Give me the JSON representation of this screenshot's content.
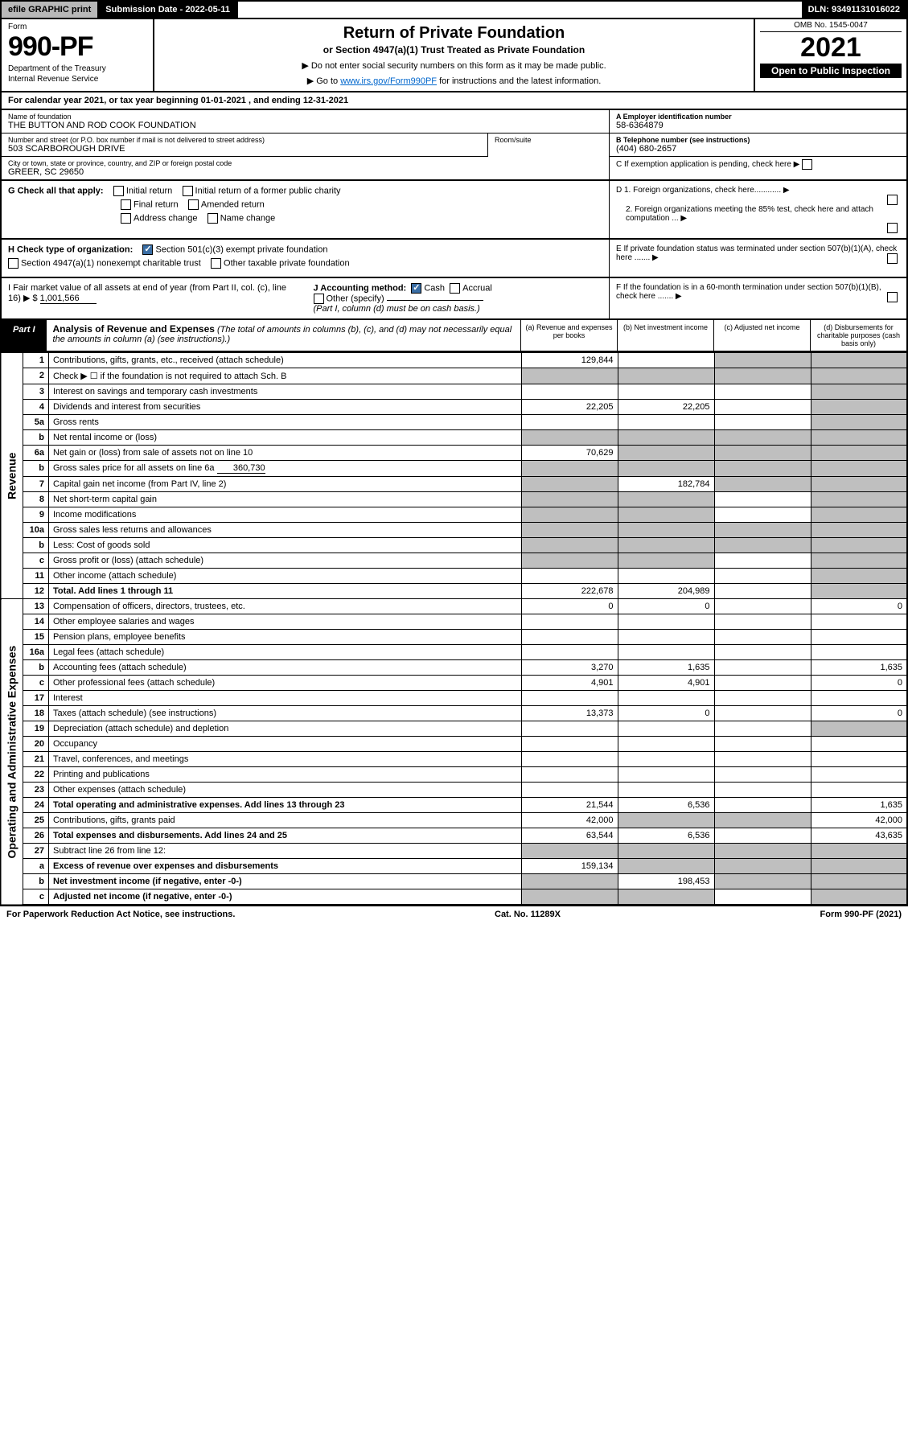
{
  "topbar": {
    "efile": "efile GRAPHIC print",
    "subdate_label": "Submission Date - 2022-05-11",
    "dln": "DLN: 93491131016022"
  },
  "header": {
    "form_word": "Form",
    "form_no": "990-PF",
    "dept": "Department of the Treasury",
    "irs": "Internal Revenue Service",
    "title": "Return of Private Foundation",
    "subtitle": "or Section 4947(a)(1) Trust Treated as Private Foundation",
    "note1": "▶ Do not enter social security numbers on this form as it may be made public.",
    "note2_pre": "▶ Go to ",
    "note2_link": "www.irs.gov/Form990PF",
    "note2_post": " for instructions and the latest information.",
    "omb": "OMB No. 1545-0047",
    "year": "2021",
    "inspect": "Open to Public Inspection"
  },
  "calendar": {
    "text_pre": "For calendar year 2021, or tax year beginning ",
    "begin": "01-01-2021",
    "text_mid": " , and ending ",
    "end": "12-31-2021"
  },
  "info": {
    "name_label": "Name of foundation",
    "name": "THE BUTTON AND ROD COOK FOUNDATION",
    "addr_label": "Number and street (or P.O. box number if mail is not delivered to street address)",
    "addr": "503 SCARBOROUGH DRIVE",
    "room_label": "Room/suite",
    "city_label": "City or town, state or province, country, and ZIP or foreign postal code",
    "city": "GREER, SC  29650",
    "ein_label": "A Employer identification number",
    "ein": "58-6364879",
    "tel_label": "B Telephone number (see instructions)",
    "tel": "(404) 680-2657",
    "c_label": "C If exemption application is pending, check here ▶"
  },
  "checks": {
    "g_label": "G Check all that apply:",
    "g_opts": [
      "Initial return",
      "Initial return of a former public charity",
      "Final return",
      "Amended return",
      "Address change",
      "Name change"
    ],
    "h_label": "H Check type of organization:",
    "h1": "Section 501(c)(3) exempt private foundation",
    "h2": "Section 4947(a)(1) nonexempt charitable trust",
    "h3": "Other taxable private foundation",
    "i_label": "I Fair market value of all assets at end of year (from Part II, col. (c), line 16) ▶ $",
    "i_val": "1,001,566",
    "j_label": "J Accounting method:",
    "j_cash": "Cash",
    "j_accrual": "Accrual",
    "j_other": "Other (specify)",
    "j_note": "(Part I, column (d) must be on cash basis.)",
    "d1": "D 1. Foreign organizations, check here............ ▶",
    "d2": "2. Foreign organizations meeting the 85% test, check here and attach computation ... ▶",
    "e": "E If private foundation status was terminated under section 507(b)(1)(A), check here ....... ▶",
    "f": "F If the foundation is in a 60-month termination under section 507(b)(1)(B), check here ....... ▶"
  },
  "part1": {
    "tab": "Part I",
    "title": "Analysis of Revenue and Expenses",
    "title_note": " (The total of amounts in columns (b), (c), and (d) may not necessarily equal the amounts in column (a) (see instructions).)",
    "col_a": "(a) Revenue and expenses per books",
    "col_b": "(b) Net investment income",
    "col_c": "(c) Adjusted net income",
    "col_d": "(d) Disbursements for charitable purposes (cash basis only)"
  },
  "vlabels": {
    "revenue": "Revenue",
    "expenses": "Operating and Administrative Expenses"
  },
  "rows": [
    {
      "n": "1",
      "desc": "Contributions, gifts, grants, etc., received (attach schedule)",
      "a": "129,844",
      "b": "",
      "c": "shade",
      "d": "shade"
    },
    {
      "n": "2",
      "desc": "Check ▶ ☐ if the foundation is not required to attach Sch. B",
      "a": "shade",
      "b": "shade",
      "c": "shade",
      "d": "shade",
      "italic_not": true
    },
    {
      "n": "3",
      "desc": "Interest on savings and temporary cash investments",
      "a": "",
      "b": "",
      "c": "",
      "d": "shade"
    },
    {
      "n": "4",
      "desc": "Dividends and interest from securities",
      "a": "22,205",
      "b": "22,205",
      "c": "",
      "d": "shade"
    },
    {
      "n": "5a",
      "desc": "Gross rents",
      "a": "",
      "b": "",
      "c": "",
      "d": "shade"
    },
    {
      "n": "b",
      "desc": "Net rental income or (loss)",
      "a": "shade",
      "b": "shade",
      "c": "shade",
      "d": "shade",
      "inset": true
    },
    {
      "n": "6a",
      "desc": "Net gain or (loss) from sale of assets not on line 10",
      "a": "70,629",
      "b": "shade",
      "c": "shade",
      "d": "shade"
    },
    {
      "n": "b",
      "desc": "Gross sales price for all assets on line 6a",
      "a": "shade",
      "b": "shade",
      "c": "shade",
      "d": "shade",
      "inset": true,
      "inline_val": "360,730"
    },
    {
      "n": "7",
      "desc": "Capital gain net income (from Part IV, line 2)",
      "a": "shade",
      "b": "182,784",
      "c": "shade",
      "d": "shade"
    },
    {
      "n": "8",
      "desc": "Net short-term capital gain",
      "a": "shade",
      "b": "shade",
      "c": "",
      "d": "shade"
    },
    {
      "n": "9",
      "desc": "Income modifications",
      "a": "shade",
      "b": "shade",
      "c": "",
      "d": "shade"
    },
    {
      "n": "10a",
      "desc": "Gross sales less returns and allowances",
      "a": "shade",
      "b": "shade",
      "c": "shade",
      "d": "shade",
      "inset": true
    },
    {
      "n": "b",
      "desc": "Less: Cost of goods sold",
      "a": "shade",
      "b": "shade",
      "c": "shade",
      "d": "shade",
      "inset": true
    },
    {
      "n": "c",
      "desc": "Gross profit or (loss) (attach schedule)",
      "a": "shade",
      "b": "shade",
      "c": "",
      "d": "shade"
    },
    {
      "n": "11",
      "desc": "Other income (attach schedule)",
      "a": "",
      "b": "",
      "c": "",
      "d": "shade"
    },
    {
      "n": "12",
      "desc": "Total. Add lines 1 through 11",
      "a": "222,678",
      "b": "204,989",
      "c": "",
      "d": "shade",
      "bold": true
    }
  ],
  "exp_rows": [
    {
      "n": "13",
      "desc": "Compensation of officers, directors, trustees, etc.",
      "a": "0",
      "b": "0",
      "c": "",
      "d": "0"
    },
    {
      "n": "14",
      "desc": "Other employee salaries and wages",
      "a": "",
      "b": "",
      "c": "",
      "d": ""
    },
    {
      "n": "15",
      "desc": "Pension plans, employee benefits",
      "a": "",
      "b": "",
      "c": "",
      "d": ""
    },
    {
      "n": "16a",
      "desc": "Legal fees (attach schedule)",
      "a": "",
      "b": "",
      "c": "",
      "d": ""
    },
    {
      "n": "b",
      "desc": "Accounting fees (attach schedule)",
      "a": "3,270",
      "b": "1,635",
      "c": "",
      "d": "1,635"
    },
    {
      "n": "c",
      "desc": "Other professional fees (attach schedule)",
      "a": "4,901",
      "b": "4,901",
      "c": "",
      "d": "0"
    },
    {
      "n": "17",
      "desc": "Interest",
      "a": "",
      "b": "",
      "c": "",
      "d": ""
    },
    {
      "n": "18",
      "desc": "Taxes (attach schedule) (see instructions)",
      "a": "13,373",
      "b": "0",
      "c": "",
      "d": "0"
    },
    {
      "n": "19",
      "desc": "Depreciation (attach schedule) and depletion",
      "a": "",
      "b": "",
      "c": "",
      "d": "shade"
    },
    {
      "n": "20",
      "desc": "Occupancy",
      "a": "",
      "b": "",
      "c": "",
      "d": ""
    },
    {
      "n": "21",
      "desc": "Travel, conferences, and meetings",
      "a": "",
      "b": "",
      "c": "",
      "d": ""
    },
    {
      "n": "22",
      "desc": "Printing and publications",
      "a": "",
      "b": "",
      "c": "",
      "d": ""
    },
    {
      "n": "23",
      "desc": "Other expenses (attach schedule)",
      "a": "",
      "b": "",
      "c": "",
      "d": ""
    },
    {
      "n": "24",
      "desc": "Total operating and administrative expenses. Add lines 13 through 23",
      "a": "21,544",
      "b": "6,536",
      "c": "",
      "d": "1,635",
      "bold": true
    },
    {
      "n": "25",
      "desc": "Contributions, gifts, grants paid",
      "a": "42,000",
      "b": "shade",
      "c": "shade",
      "d": "42,000"
    },
    {
      "n": "26",
      "desc": "Total expenses and disbursements. Add lines 24 and 25",
      "a": "63,544",
      "b": "6,536",
      "c": "",
      "d": "43,635",
      "bold": true
    },
    {
      "n": "27",
      "desc": "Subtract line 26 from line 12:",
      "a": "shade",
      "b": "shade",
      "c": "shade",
      "d": "shade"
    },
    {
      "n": "a",
      "desc": "Excess of revenue over expenses and disbursements",
      "a": "159,134",
      "b": "shade",
      "c": "shade",
      "d": "shade",
      "bold": true
    },
    {
      "n": "b",
      "desc": "Net investment income (if negative, enter -0-)",
      "a": "shade",
      "b": "198,453",
      "c": "shade",
      "d": "shade",
      "bold": true
    },
    {
      "n": "c",
      "desc": "Adjusted net income (if negative, enter -0-)",
      "a": "shade",
      "b": "shade",
      "c": "",
      "d": "shade",
      "bold": true
    }
  ],
  "footer": {
    "left": "For Paperwork Reduction Act Notice, see instructions.",
    "mid": "Cat. No. 11289X",
    "right": "Form 990-PF (2021)"
  },
  "colors": {
    "shade": "#bfbfbf",
    "black": "#000000",
    "link": "#0066cc",
    "checkbox_checked": "#3a6ea5"
  }
}
